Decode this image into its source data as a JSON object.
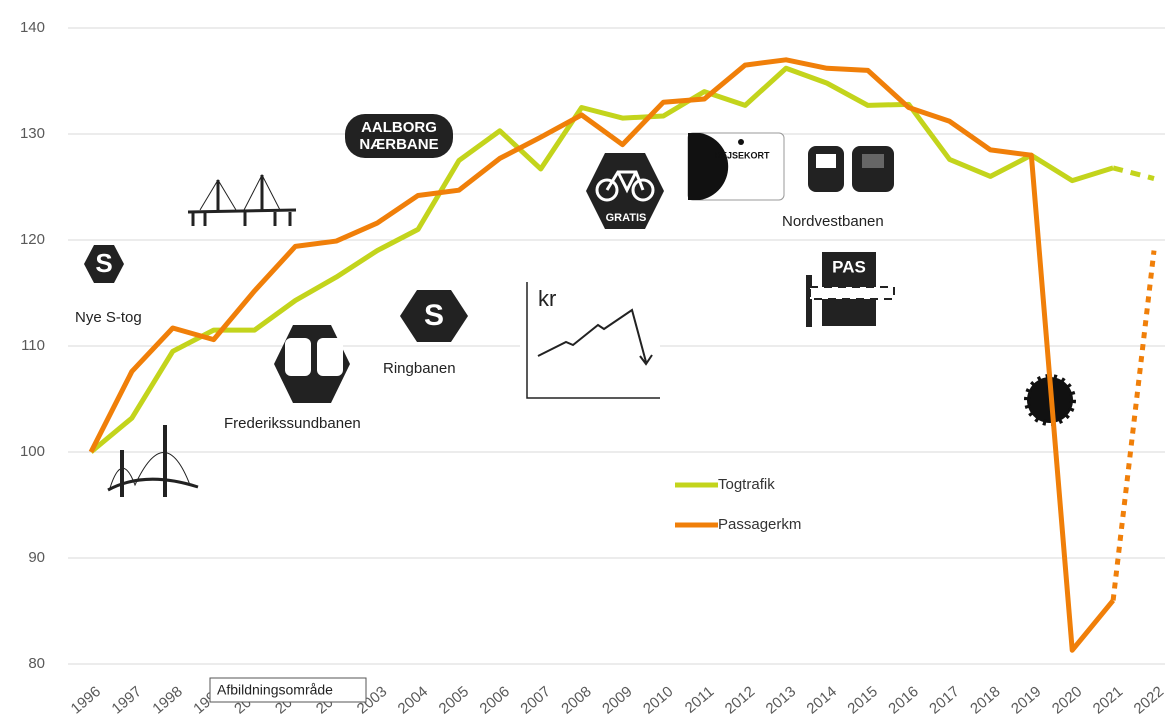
{
  "chart_data": {
    "type": "line",
    "categories": [
      "1996",
      "1997",
      "1998",
      "1999",
      "2000",
      "2001",
      "2002",
      "2003",
      "2004",
      "2005",
      "2006",
      "2007",
      "2008",
      "2009",
      "2010",
      "2011",
      "2012",
      "2013",
      "2014",
      "2015",
      "2016",
      "2017",
      "2018",
      "2019",
      "2020",
      "2021",
      "2022"
    ],
    "series": [
      {
        "name": "Togtrafik",
        "color": "#c3d41c",
        "dash_last_segment": true,
        "values": [
          100,
          103.2,
          109.5,
          111.5,
          111.5,
          114.3,
          116.5,
          119,
          121,
          127.5,
          130.3,
          126.7,
          132.5,
          131.5,
          131.7,
          134,
          132.7,
          136.2,
          134.8,
          132.7,
          132.8,
          127.6,
          126,
          128,
          125.6,
          126.8,
          125.8
        ]
      },
      {
        "name": "Passagerkm",
        "color": "#f07f09",
        "dash_last_segment": true,
        "values": [
          100,
          107.6,
          111.7,
          110.6,
          115.2,
          119.4,
          119.9,
          121.6,
          124.2,
          124.7,
          127.7,
          129.7,
          131.8,
          129,
          133,
          133.3,
          136.5,
          137,
          136.2,
          136,
          132.5,
          131.2,
          128.5,
          128,
          81.3,
          86,
          119
        ]
      }
    ],
    "ylim": [
      80,
      140
    ],
    "yticks": [
      80,
      90,
      100,
      110,
      120,
      130,
      140
    ],
    "grid": true,
    "annotations": [
      "Nye S-tog",
      "Frederikssundbanen",
      "Ringbanen",
      "Nordvestbanen",
      "AALBORG",
      "NÆRBANE",
      "GRATIS",
      "REJSEKORT",
      "PAS",
      "kr",
      "S",
      "S"
    ],
    "tooltip": "Afbildningsområde"
  }
}
